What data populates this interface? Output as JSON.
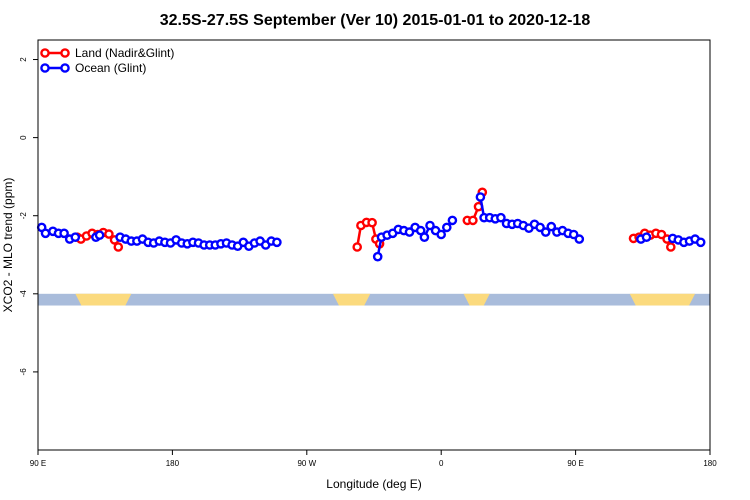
{
  "chart_data": {
    "type": "line",
    "title": "32.5S-27.5S September (Ver 10)   2015-01-01 to 2020-12-18",
    "xlabel": "Longitude (deg E)",
    "ylabel": "XCO2 - MLO trend (ppm)",
    "xlim": [
      90,
      450
    ],
    "ylim": [
      -8,
      2.5
    ],
    "x_ticks": [
      {
        "value": 90,
        "label": "90 E"
      },
      {
        "value": 162,
        "label": "180"
      },
      {
        "value": 234,
        "label": "90 W"
      },
      {
        "value": 306,
        "label": "0"
      },
      {
        "value": 378,
        "label": "90 E"
      },
      {
        "value": 450,
        "label": "180"
      }
    ],
    "y_ticks": [
      {
        "value": 2,
        "label": "2"
      },
      {
        "value": 0,
        "label": "0"
      },
      {
        "value": -2,
        "label": "-2"
      },
      {
        "value": -4,
        "label": "-4"
      },
      {
        "value": -6,
        "label": "-6"
      }
    ],
    "legend_position": "top-left",
    "land_band": {
      "y_range": [
        -4.3,
        -4.0
      ],
      "ocean_color": "#a9bcdb",
      "land_color": "#fbda7e",
      "land_segments": [
        [
          110,
          140
        ],
        [
          248,
          268
        ],
        [
          318,
          332
        ],
        [
          407,
          442
        ]
      ]
    },
    "series": [
      {
        "name": "Land (Nadir&Glint)",
        "color": "#ff0000",
        "segments": [
          [
            [
              111,
              -2.55
            ],
            [
              113,
              -2.6
            ],
            [
              116,
              -2.52
            ],
            [
              119,
              -2.45
            ],
            [
              122,
              -2.48
            ],
            [
              125,
              -2.43
            ],
            [
              128,
              -2.47
            ],
            [
              131,
              -2.62
            ],
            [
              133,
              -2.8
            ]
          ],
          [
            [
              261,
              -2.8
            ],
            [
              263,
              -2.25
            ],
            [
              266,
              -2.17
            ],
            [
              269,
              -2.18
            ],
            [
              271,
              -2.6
            ],
            [
              273,
              -2.72
            ]
          ],
          [
            [
              320,
              -2.12
            ],
            [
              323,
              -2.12
            ],
            [
              326,
              -1.77
            ],
            [
              328,
              -1.4
            ]
          ],
          [
            [
              409,
              -2.58
            ],
            [
              412,
              -2.55
            ],
            [
              415,
              -2.45
            ],
            [
              418,
              -2.5
            ],
            [
              421,
              -2.45
            ],
            [
              424,
              -2.48
            ],
            [
              427,
              -2.6
            ],
            [
              429,
              -2.8
            ]
          ]
        ]
      },
      {
        "name": "Ocean (Glint)",
        "color": "#0000ff",
        "segments": [
          [
            [
              92,
              -2.3
            ],
            [
              94,
              -2.45
            ],
            [
              98,
              -2.4
            ],
            [
              101,
              -2.45
            ],
            [
              104,
              -2.45
            ],
            [
              107,
              -2.6
            ],
            [
              110,
              -2.55
            ]
          ],
          [
            [
              121,
              -2.55
            ],
            [
              123,
              -2.5
            ]
          ],
          [
            [
              134,
              -2.55
            ],
            [
              137,
              -2.6
            ],
            [
              140,
              -2.65
            ],
            [
              143,
              -2.65
            ],
            [
              146,
              -2.6
            ],
            [
              149,
              -2.68
            ],
            [
              152,
              -2.7
            ],
            [
              155,
              -2.65
            ],
            [
              158,
              -2.68
            ],
            [
              161,
              -2.7
            ],
            [
              164,
              -2.62
            ],
            [
              167,
              -2.7
            ],
            [
              170,
              -2.72
            ],
            [
              173,
              -2.68
            ],
            [
              176,
              -2.7
            ],
            [
              179,
              -2.75
            ],
            [
              182,
              -2.75
            ],
            [
              185,
              -2.75
            ],
            [
              188,
              -2.72
            ],
            [
              191,
              -2.7
            ],
            [
              194,
              -2.75
            ],
            [
              197,
              -2.78
            ],
            [
              200,
              -2.68
            ],
            [
              203,
              -2.78
            ],
            [
              206,
              -2.7
            ],
            [
              209,
              -2.65
            ],
            [
              212,
              -2.75
            ],
            [
              215,
              -2.65
            ],
            [
              218,
              -2.68
            ]
          ],
          [
            [
              272,
              -3.05
            ],
            [
              274,
              -2.55
            ],
            [
              277,
              -2.5
            ],
            [
              280,
              -2.45
            ],
            [
              283,
              -2.35
            ],
            [
              286,
              -2.38
            ],
            [
              289,
              -2.42
            ],
            [
              292,
              -2.3
            ],
            [
              295,
              -2.38
            ],
            [
              297,
              -2.55
            ],
            [
              300,
              -2.25
            ],
            [
              303,
              -2.38
            ],
            [
              306,
              -2.48
            ],
            [
              309,
              -2.3
            ],
            [
              312,
              -2.12
            ]
          ],
          [
            [
              327,
              -1.52
            ],
            [
              329,
              -2.05
            ],
            [
              332,
              -2.05
            ],
            [
              335,
              -2.08
            ],
            [
              338,
              -2.05
            ],
            [
              341,
              -2.2
            ],
            [
              344,
              -2.22
            ],
            [
              347,
              -2.2
            ],
            [
              350,
              -2.25
            ],
            [
              353,
              -2.32
            ],
            [
              356,
              -2.22
            ],
            [
              359,
              -2.3
            ],
            [
              362,
              -2.42
            ],
            [
              365,
              -2.28
            ],
            [
              368,
              -2.42
            ],
            [
              371,
              -2.38
            ],
            [
              374,
              -2.45
            ],
            [
              377,
              -2.48
            ],
            [
              380,
              -2.6
            ]
          ],
          [
            [
              413,
              -2.6
            ],
            [
              416,
              -2.55
            ]
          ],
          [
            [
              430,
              -2.58
            ],
            [
              433,
              -2.62
            ],
            [
              436,
              -2.68
            ],
            [
              439,
              -2.65
            ],
            [
              442,
              -2.6
            ],
            [
              445,
              -2.68
            ]
          ]
        ]
      }
    ]
  }
}
